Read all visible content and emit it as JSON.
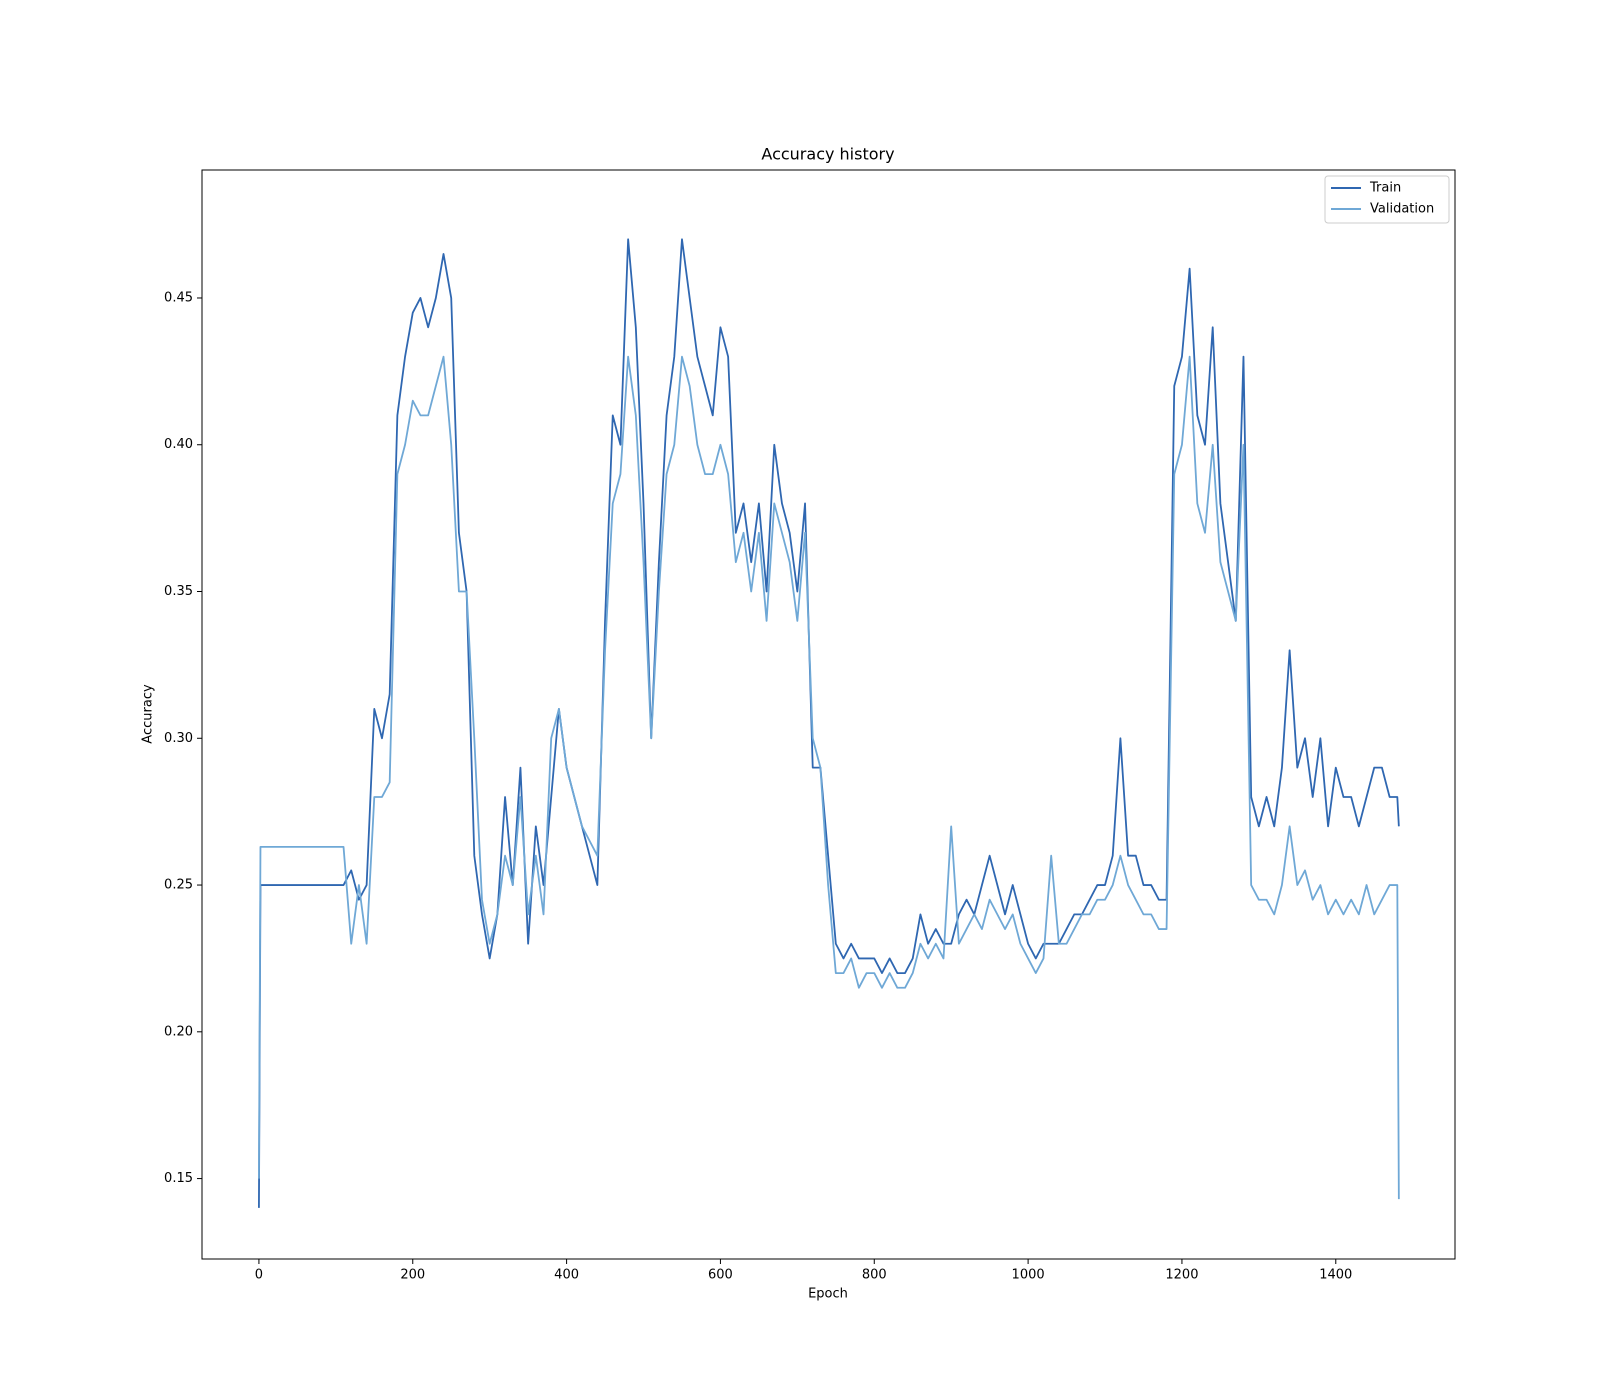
{
  "chart_data": {
    "type": "line",
    "title": "Accuracy history",
    "xlabel": "Epoch",
    "ylabel": "Accuracy",
    "x": [
      0,
      2,
      10,
      20,
      30,
      40,
      50,
      60,
      70,
      80,
      90,
      100,
      110,
      120,
      130,
      140,
      150,
      160,
      170,
      180,
      190,
      200,
      210,
      220,
      230,
      240,
      250,
      260,
      270,
      280,
      290,
      300,
      310,
      320,
      330,
      340,
      350,
      360,
      370,
      380,
      390,
      400,
      410,
      420,
      430,
      440,
      450,
      460,
      470,
      480,
      490,
      500,
      510,
      520,
      530,
      540,
      550,
      560,
      570,
      580,
      590,
      600,
      610,
      620,
      630,
      640,
      650,
      660,
      670,
      680,
      690,
      700,
      710,
      720,
      730,
      740,
      750,
      760,
      770,
      780,
      790,
      800,
      810,
      820,
      830,
      840,
      850,
      860,
      870,
      880,
      890,
      900,
      910,
      920,
      930,
      940,
      950,
      960,
      970,
      980,
      990,
      1000,
      1010,
      1020,
      1030,
      1040,
      1050,
      1060,
      1070,
      1080,
      1090,
      1100,
      1110,
      1120,
      1130,
      1140,
      1150,
      1160,
      1170,
      1180,
      1190,
      1200,
      1210,
      1220,
      1230,
      1240,
      1250,
      1260,
      1270,
      1280,
      1290,
      1300,
      1310,
      1320,
      1330,
      1340,
      1350,
      1360,
      1370,
      1380,
      1390,
      1400,
      1410,
      1420,
      1430,
      1440,
      1450,
      1460,
      1470,
      1480,
      1482
    ],
    "series": [
      {
        "name": "Train",
        "color": "#2f67b1",
        "values": [
          0.14,
          0.25,
          0.25,
          0.25,
          0.25,
          0.25,
          0.25,
          0.25,
          0.25,
          0.25,
          0.25,
          0.25,
          0.25,
          0.255,
          0.245,
          0.25,
          0.31,
          0.3,
          0.315,
          0.41,
          0.43,
          0.445,
          0.45,
          0.44,
          0.45,
          0.465,
          0.45,
          0.37,
          0.35,
          0.26,
          0.24,
          0.225,
          0.24,
          0.28,
          0.25,
          0.29,
          0.23,
          0.27,
          0.25,
          0.28,
          0.31,
          0.29,
          0.28,
          0.27,
          0.26,
          0.25,
          0.34,
          0.41,
          0.4,
          0.47,
          0.44,
          0.38,
          0.3,
          0.36,
          0.41,
          0.43,
          0.47,
          0.45,
          0.43,
          0.42,
          0.41,
          0.44,
          0.43,
          0.37,
          0.38,
          0.36,
          0.38,
          0.35,
          0.4,
          0.38,
          0.37,
          0.35,
          0.38,
          0.29,
          0.29,
          0.26,
          0.23,
          0.225,
          0.23,
          0.225,
          0.225,
          0.225,
          0.22,
          0.225,
          0.22,
          0.22,
          0.225,
          0.24,
          0.23,
          0.235,
          0.23,
          0.23,
          0.24,
          0.245,
          0.24,
          0.25,
          0.26,
          0.25,
          0.24,
          0.25,
          0.24,
          0.23,
          0.225,
          0.23,
          0.23,
          0.23,
          0.235,
          0.24,
          0.24,
          0.245,
          0.25,
          0.25,
          0.26,
          0.3,
          0.26,
          0.26,
          0.25,
          0.25,
          0.245,
          0.245,
          0.42,
          0.43,
          0.46,
          0.41,
          0.4,
          0.44,
          0.38,
          0.36,
          0.34,
          0.43,
          0.28,
          0.27,
          0.28,
          0.27,
          0.29,
          0.33,
          0.29,
          0.3,
          0.28,
          0.3,
          0.27,
          0.29,
          0.28,
          0.28,
          0.27,
          0.28,
          0.29,
          0.29,
          0.28,
          0.28,
          0.27
        ]
      },
      {
        "name": "Validation",
        "color": "#6fa8d6",
        "values": [
          0.15,
          0.263,
          0.263,
          0.263,
          0.263,
          0.263,
          0.263,
          0.263,
          0.263,
          0.263,
          0.263,
          0.263,
          0.263,
          0.23,
          0.25,
          0.23,
          0.28,
          0.28,
          0.285,
          0.39,
          0.4,
          0.415,
          0.41,
          0.41,
          0.42,
          0.43,
          0.4,
          0.35,
          0.35,
          0.3,
          0.245,
          0.23,
          0.24,
          0.26,
          0.25,
          0.28,
          0.24,
          0.26,
          0.24,
          0.3,
          0.31,
          0.29,
          0.28,
          0.27,
          0.265,
          0.26,
          0.33,
          0.38,
          0.39,
          0.43,
          0.41,
          0.36,
          0.3,
          0.35,
          0.39,
          0.4,
          0.43,
          0.42,
          0.4,
          0.39,
          0.39,
          0.4,
          0.39,
          0.36,
          0.37,
          0.35,
          0.37,
          0.34,
          0.38,
          0.37,
          0.36,
          0.34,
          0.37,
          0.3,
          0.29,
          0.25,
          0.22,
          0.22,
          0.225,
          0.215,
          0.22,
          0.22,
          0.215,
          0.22,
          0.215,
          0.215,
          0.22,
          0.23,
          0.225,
          0.23,
          0.225,
          0.27,
          0.23,
          0.235,
          0.24,
          0.235,
          0.245,
          0.24,
          0.235,
          0.24,
          0.23,
          0.225,
          0.22,
          0.225,
          0.26,
          0.23,
          0.23,
          0.235,
          0.24,
          0.24,
          0.245,
          0.245,
          0.25,
          0.26,
          0.25,
          0.245,
          0.24,
          0.24,
          0.235,
          0.235,
          0.39,
          0.4,
          0.43,
          0.38,
          0.37,
          0.4,
          0.36,
          0.35,
          0.34,
          0.4,
          0.25,
          0.245,
          0.245,
          0.24,
          0.25,
          0.27,
          0.25,
          0.255,
          0.245,
          0.25,
          0.24,
          0.245,
          0.24,
          0.245,
          0.24,
          0.25,
          0.24,
          0.245,
          0.25,
          0.25,
          0.143
        ]
      }
    ],
    "xlim": [
      -74,
      1555
    ],
    "xticks": [
      0,
      200,
      400,
      600,
      800,
      1000,
      1200,
      1400
    ],
    "ylim": [
      0.1226,
      0.4936
    ],
    "yticks": [
      0.15,
      {
        "value": 0.2,
        "label": "0.20"
      },
      0.25,
      {
        "value": 0.3,
        "label": "0.30"
      },
      0.35,
      {
        "value": 0.4,
        "label": "0.40"
      },
      0.45
    ],
    "legend": "upper right"
  }
}
